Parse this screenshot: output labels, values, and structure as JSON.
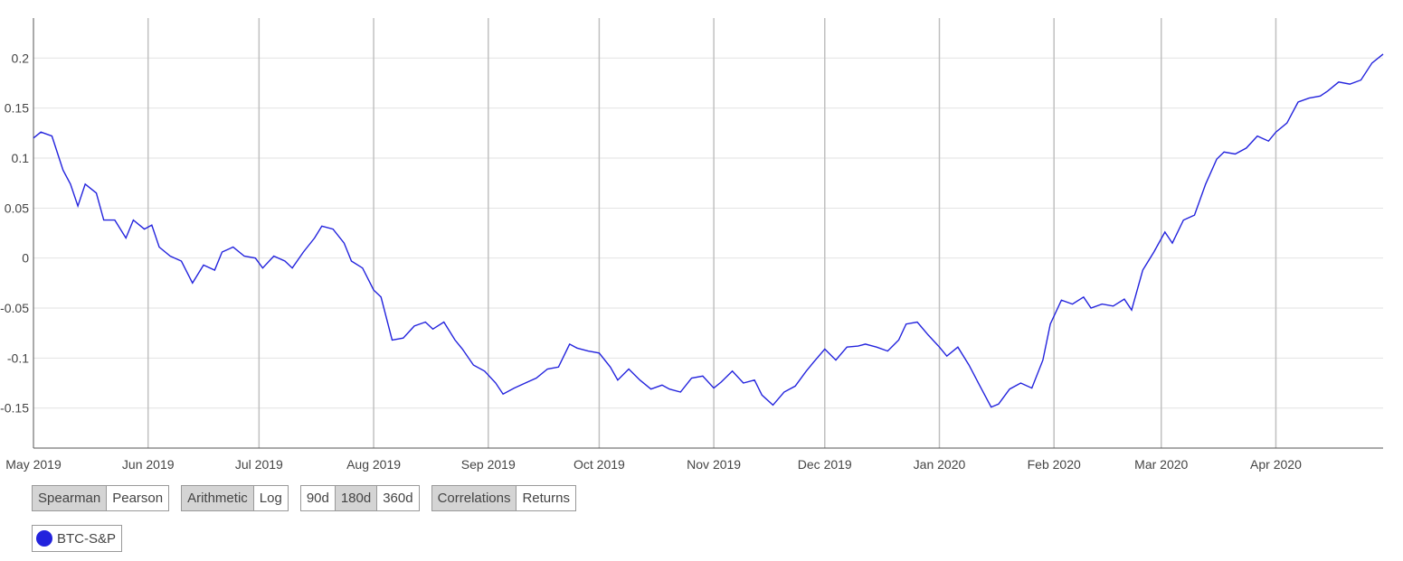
{
  "chart_data": {
    "type": "line",
    "x": [
      0,
      2,
      5,
      8,
      10,
      12,
      14,
      17,
      19,
      22,
      25,
      27,
      30,
      32,
      34,
      37,
      40,
      43,
      46,
      49,
      51,
      54,
      57,
      60,
      62,
      65,
      68,
      70,
      73,
      76,
      78,
      81,
      84,
      86,
      89,
      92,
      94,
      97,
      100,
      103,
      106,
      108,
      111,
      114,
      116,
      119,
      122,
      125,
      127,
      130,
      133,
      136,
      139,
      142,
      145,
      147,
      150,
      153,
      156,
      158,
      161,
      164,
      167,
      170,
      172,
      175,
      178,
      181,
      184,
      186,
      189,
      192,
      195,
      197,
      200,
      203,
      206,
      209,
      211,
      214,
      217,
      220,
      223,
      225,
      228,
      231,
      234,
      236,
      239,
      242,
      245,
      247,
      250,
      253,
      256,
      259,
      261,
      264,
      267,
      270,
      273,
      275,
      278,
      281,
      284,
      286,
      289,
      292,
      295,
      297,
      300,
      303,
      306,
      308,
      311,
      314,
      317,
      320,
      322,
      325,
      328,
      331,
      334,
      336,
      339,
      342,
      345,
      348,
      350,
      353,
      356,
      359,
      362,
      365
    ],
    "series": [
      {
        "name": "BTC-S&P",
        "color": "#2323dd",
        "values": [
          0.12,
          0.126,
          0.122,
          0.088,
          0.074,
          0.052,
          0.074,
          0.065,
          0.038,
          0.038,
          0.02,
          0.038,
          0.029,
          0.033,
          0.011,
          0.002,
          -0.003,
          -0.025,
          -0.007,
          -0.012,
          0.006,
          0.011,
          0.002,
          0,
          -0.01,
          0.002,
          -0.003,
          -0.01,
          0.006,
          0.02,
          0.032,
          0.029,
          0.015,
          -0.003,
          -0.01,
          -0.032,
          -0.039,
          -0.082,
          -0.08,
          -0.068,
          -0.064,
          -0.071,
          -0.064,
          -0.082,
          -0.091,
          -0.107,
          -0.113,
          -0.125,
          -0.136,
          -0.13,
          -0.125,
          -0.12,
          -0.111,
          -0.109,
          -0.086,
          -0.09,
          -0.093,
          -0.095,
          -0.109,
          -0.122,
          -0.111,
          -0.122,
          -0.131,
          -0.127,
          -0.131,
          -0.134,
          -0.12,
          -0.118,
          -0.13,
          -0.124,
          -0.113,
          -0.125,
          -0.122,
          -0.137,
          -0.147,
          -0.134,
          -0.128,
          -0.113,
          -0.104,
          -0.091,
          -0.102,
          -0.089,
          -0.088,
          -0.086,
          -0.089,
          -0.093,
          -0.082,
          -0.066,
          -0.064,
          -0.077,
          -0.089,
          -0.098,
          -0.089,
          -0.107,
          -0.128,
          -0.149,
          -0.146,
          -0.131,
          -0.125,
          -0.13,
          -0.102,
          -0.066,
          -0.042,
          -0.046,
          -0.039,
          -0.05,
          -0.046,
          -0.048,
          -0.041,
          -0.052,
          -0.012,
          0.006,
          0.026,
          0.015,
          0.038,
          0.043,
          0.074,
          0.099,
          0.106,
          0.104,
          0.11,
          0.122,
          0.117,
          0.126,
          0.135,
          0.156,
          0.16,
          0.162,
          0.167,
          0.176,
          0.174,
          0.178,
          0.195,
          0.204
        ]
      }
    ],
    "xlim": [
      0,
      365
    ],
    "xticks": [
      {
        "value": 0,
        "label": "May 2019"
      },
      {
        "value": 31,
        "label": "Jun 2019"
      },
      {
        "value": 61,
        "label": "Jul 2019"
      },
      {
        "value": 92,
        "label": "Aug 2019"
      },
      {
        "value": 123,
        "label": "Sep 2019"
      },
      {
        "value": 153,
        "label": "Oct 2019"
      },
      {
        "value": 184,
        "label": "Nov 2019"
      },
      {
        "value": 214,
        "label": "Dec 2019"
      },
      {
        "value": 245,
        "label": "Jan 2020"
      },
      {
        "value": 276,
        "label": "Feb 2020"
      },
      {
        "value": 305,
        "label": "Mar 2020"
      },
      {
        "value": 336,
        "label": "Apr 2020"
      }
    ],
    "ylim": [
      -0.19,
      0.24
    ],
    "yticks": [
      -0.15,
      -0.1,
      -0.05,
      0,
      0.05,
      0.1,
      0.15,
      0.2
    ],
    "grid": true
  },
  "controls": [
    {
      "options": [
        "Spearman",
        "Pearson"
      ],
      "selected": 0
    },
    {
      "options": [
        "Arithmetic",
        "Log"
      ],
      "selected": 0
    },
    {
      "options": [
        "90d",
        "180d",
        "360d"
      ],
      "selected": 1
    },
    {
      "options": [
        "Correlations",
        "Returns"
      ],
      "selected": 0
    }
  ]
}
